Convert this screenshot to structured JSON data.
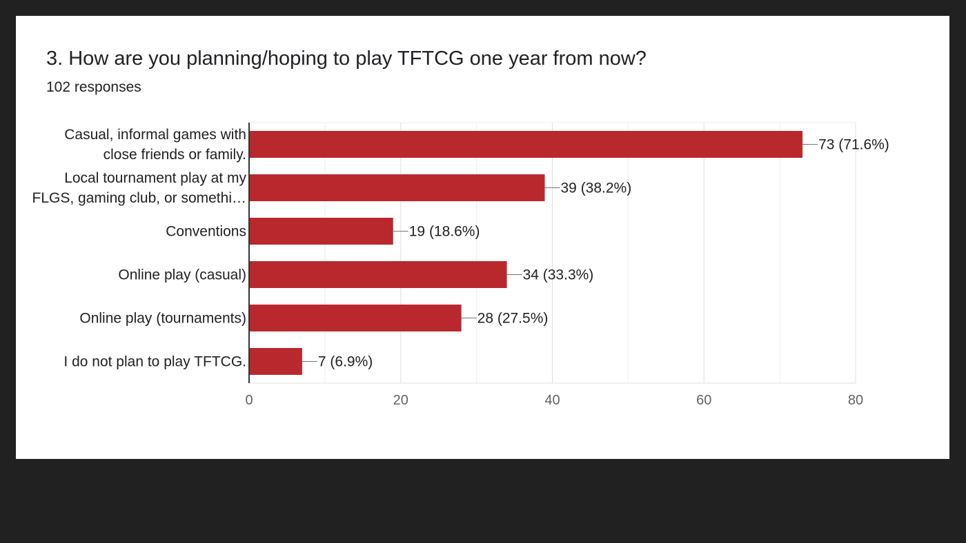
{
  "header": {
    "title": "3. How are you planning/hoping to play TFTCG one year from now?",
    "responses": "102 responses"
  },
  "colors": {
    "bar": "#b9282d",
    "background": "#212121",
    "card": "#ffffff"
  },
  "chart_data": {
    "type": "bar",
    "orientation": "horizontal",
    "categories": [
      [
        "Casual, informal games with",
        "close friends or family."
      ],
      [
        "Local tournament play at my",
        "FLGS, gaming club, or somethi…"
      ],
      [
        "Conventions"
      ],
      [
        "Online play (casual)"
      ],
      [
        "Online play (tournaments)"
      ],
      [
        "I do not plan to play TFTCG."
      ]
    ],
    "values": [
      73,
      39,
      19,
      34,
      28,
      7
    ],
    "data_labels": [
      "73 (71.6%)",
      "39 (38.2%)",
      "19 (18.6%)",
      "34 (33.3%)",
      "28 (27.5%)",
      "7 (6.9%)"
    ],
    "xlim": [
      0,
      80
    ],
    "xticks": [
      0,
      20,
      40,
      60,
      80
    ],
    "grid": true
  }
}
